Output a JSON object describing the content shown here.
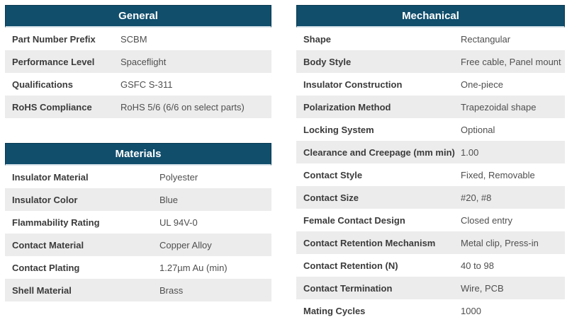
{
  "colors": {
    "header_bg": "#104e6c",
    "header_border": "#0a3a52",
    "header_text": "#ffffff",
    "row_alt_bg": "#ececec",
    "label_text": "#3b3b3b",
    "value_text": "#4f4f4f"
  },
  "tables": {
    "general": {
      "title": "General",
      "rows": [
        {
          "label": "Part Number Prefix",
          "value": "SCBM"
        },
        {
          "label": "Performance Level",
          "value": "Spaceflight"
        },
        {
          "label": "Qualifications",
          "value": "GSFC S-311"
        },
        {
          "label": "RoHS Compliance",
          "value": "RoHS 5/6 (6/6 on select parts)"
        }
      ]
    },
    "materials": {
      "title": "Materials",
      "rows": [
        {
          "label": "Insulator Material",
          "value": "Polyester"
        },
        {
          "label": "Insulator Color",
          "value": "Blue"
        },
        {
          "label": "Flammability Rating",
          "value": "UL 94V-0"
        },
        {
          "label": "Contact Material",
          "value": "Copper Alloy"
        },
        {
          "label": "Contact Plating",
          "value": "1.27µm Au (min)"
        },
        {
          "label": "Shell Material",
          "value": "Brass"
        }
      ]
    },
    "mechanical": {
      "title": "Mechanical",
      "rows": [
        {
          "label": "Shape",
          "value": "Rectangular"
        },
        {
          "label": "Body Style",
          "value": "Free cable, Panel mount"
        },
        {
          "label": "Insulator Construction",
          "value": "One-piece"
        },
        {
          "label": "Polarization Method",
          "value": "Trapezoidal shape"
        },
        {
          "label": "Locking System",
          "value": "Optional"
        },
        {
          "label": "Clearance and Creepage (mm min)",
          "value": "1.00"
        },
        {
          "label": "Contact Style",
          "value": "Fixed, Removable"
        },
        {
          "label": "Contact Size",
          "value": "#20, #8"
        },
        {
          "label": "Female Contact Design",
          "value": "Closed entry"
        },
        {
          "label": "Contact Retention Mechanism",
          "value": "Metal clip, Press-in"
        },
        {
          "label": "Contact Retention (N)",
          "value": "40 to 98"
        },
        {
          "label": "Contact Termination",
          "value": "Wire, PCB"
        },
        {
          "label": "Mating Cycles",
          "value": "1000"
        }
      ]
    }
  }
}
